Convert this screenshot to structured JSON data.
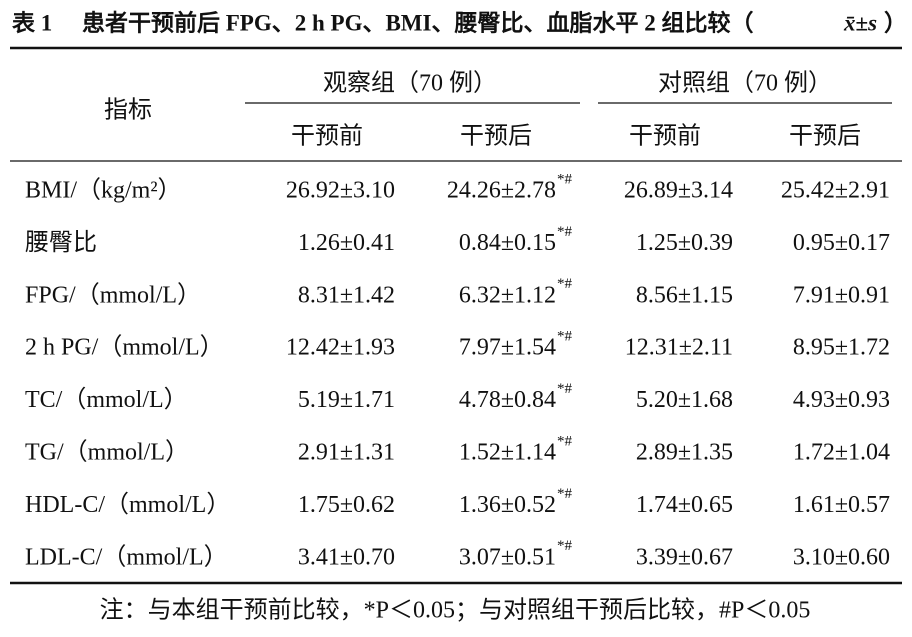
{
  "title": {
    "label": "表 1",
    "text": "患者干预前后 FPG、2 h PG、BMI、腰臀比、血脂水平 2 组比较（",
    "stat": "x̄±s",
    "close": "）"
  },
  "table": {
    "corner": "指标",
    "groups": [
      "观察组（70 例）",
      "对照组（70 例）"
    ],
    "subheaders": [
      "干预前",
      "干预后",
      "干预前",
      "干预后"
    ],
    "rows": [
      {
        "label": "BMI/（kg/m²）",
        "cells": [
          "26.92±3.10",
          {
            "text": "24.26±2.78",
            "mark": "*#"
          },
          "26.89±3.14",
          "25.42±2.91"
        ]
      },
      {
        "label": "腰臀比",
        "cells": [
          "1.26±0.41",
          {
            "text": "0.84±0.15",
            "mark": "*#"
          },
          "1.25±0.39",
          "0.95±0.17"
        ]
      },
      {
        "label": "FPG/（mmol/L）",
        "cells": [
          "8.31±1.42",
          {
            "text": "6.32±1.12",
            "mark": "*#"
          },
          "8.56±1.15",
          "7.91±0.91"
        ]
      },
      {
        "label": "2 h PG/（mmol/L）",
        "cells": [
          "12.42±1.93",
          {
            "text": "7.97±1.54",
            "mark": "*#"
          },
          "12.31±2.11",
          "8.95±1.72"
        ]
      },
      {
        "label": "TC/（mmol/L）",
        "cells": [
          "5.19±1.71",
          {
            "text": "4.78±0.84",
            "mark": "*#"
          },
          "5.20±1.68",
          "4.93±0.93"
        ]
      },
      {
        "label": "TG/（mmol/L）",
        "cells": [
          "2.91±1.31",
          {
            "text": "1.52±1.14",
            "mark": "*#"
          },
          "2.89±1.35",
          "1.72±1.04"
        ]
      },
      {
        "label": "HDL-C/（mmol/L）",
        "cells": [
          "1.75±0.62",
          {
            "text": "1.36±0.52",
            "mark": "*#"
          },
          "1.74±0.65",
          "1.61±0.57"
        ]
      },
      {
        "label": "LDL-C/（mmol/L）",
        "cells": [
          "3.41±0.70",
          {
            "text": "3.07±0.51",
            "mark": "*#"
          },
          "3.39±0.67",
          "3.10±0.60"
        ]
      }
    ]
  },
  "note": "注：与本组干预前比较，*P＜0.05；与对照组干预后比较，#P＜0.05"
}
